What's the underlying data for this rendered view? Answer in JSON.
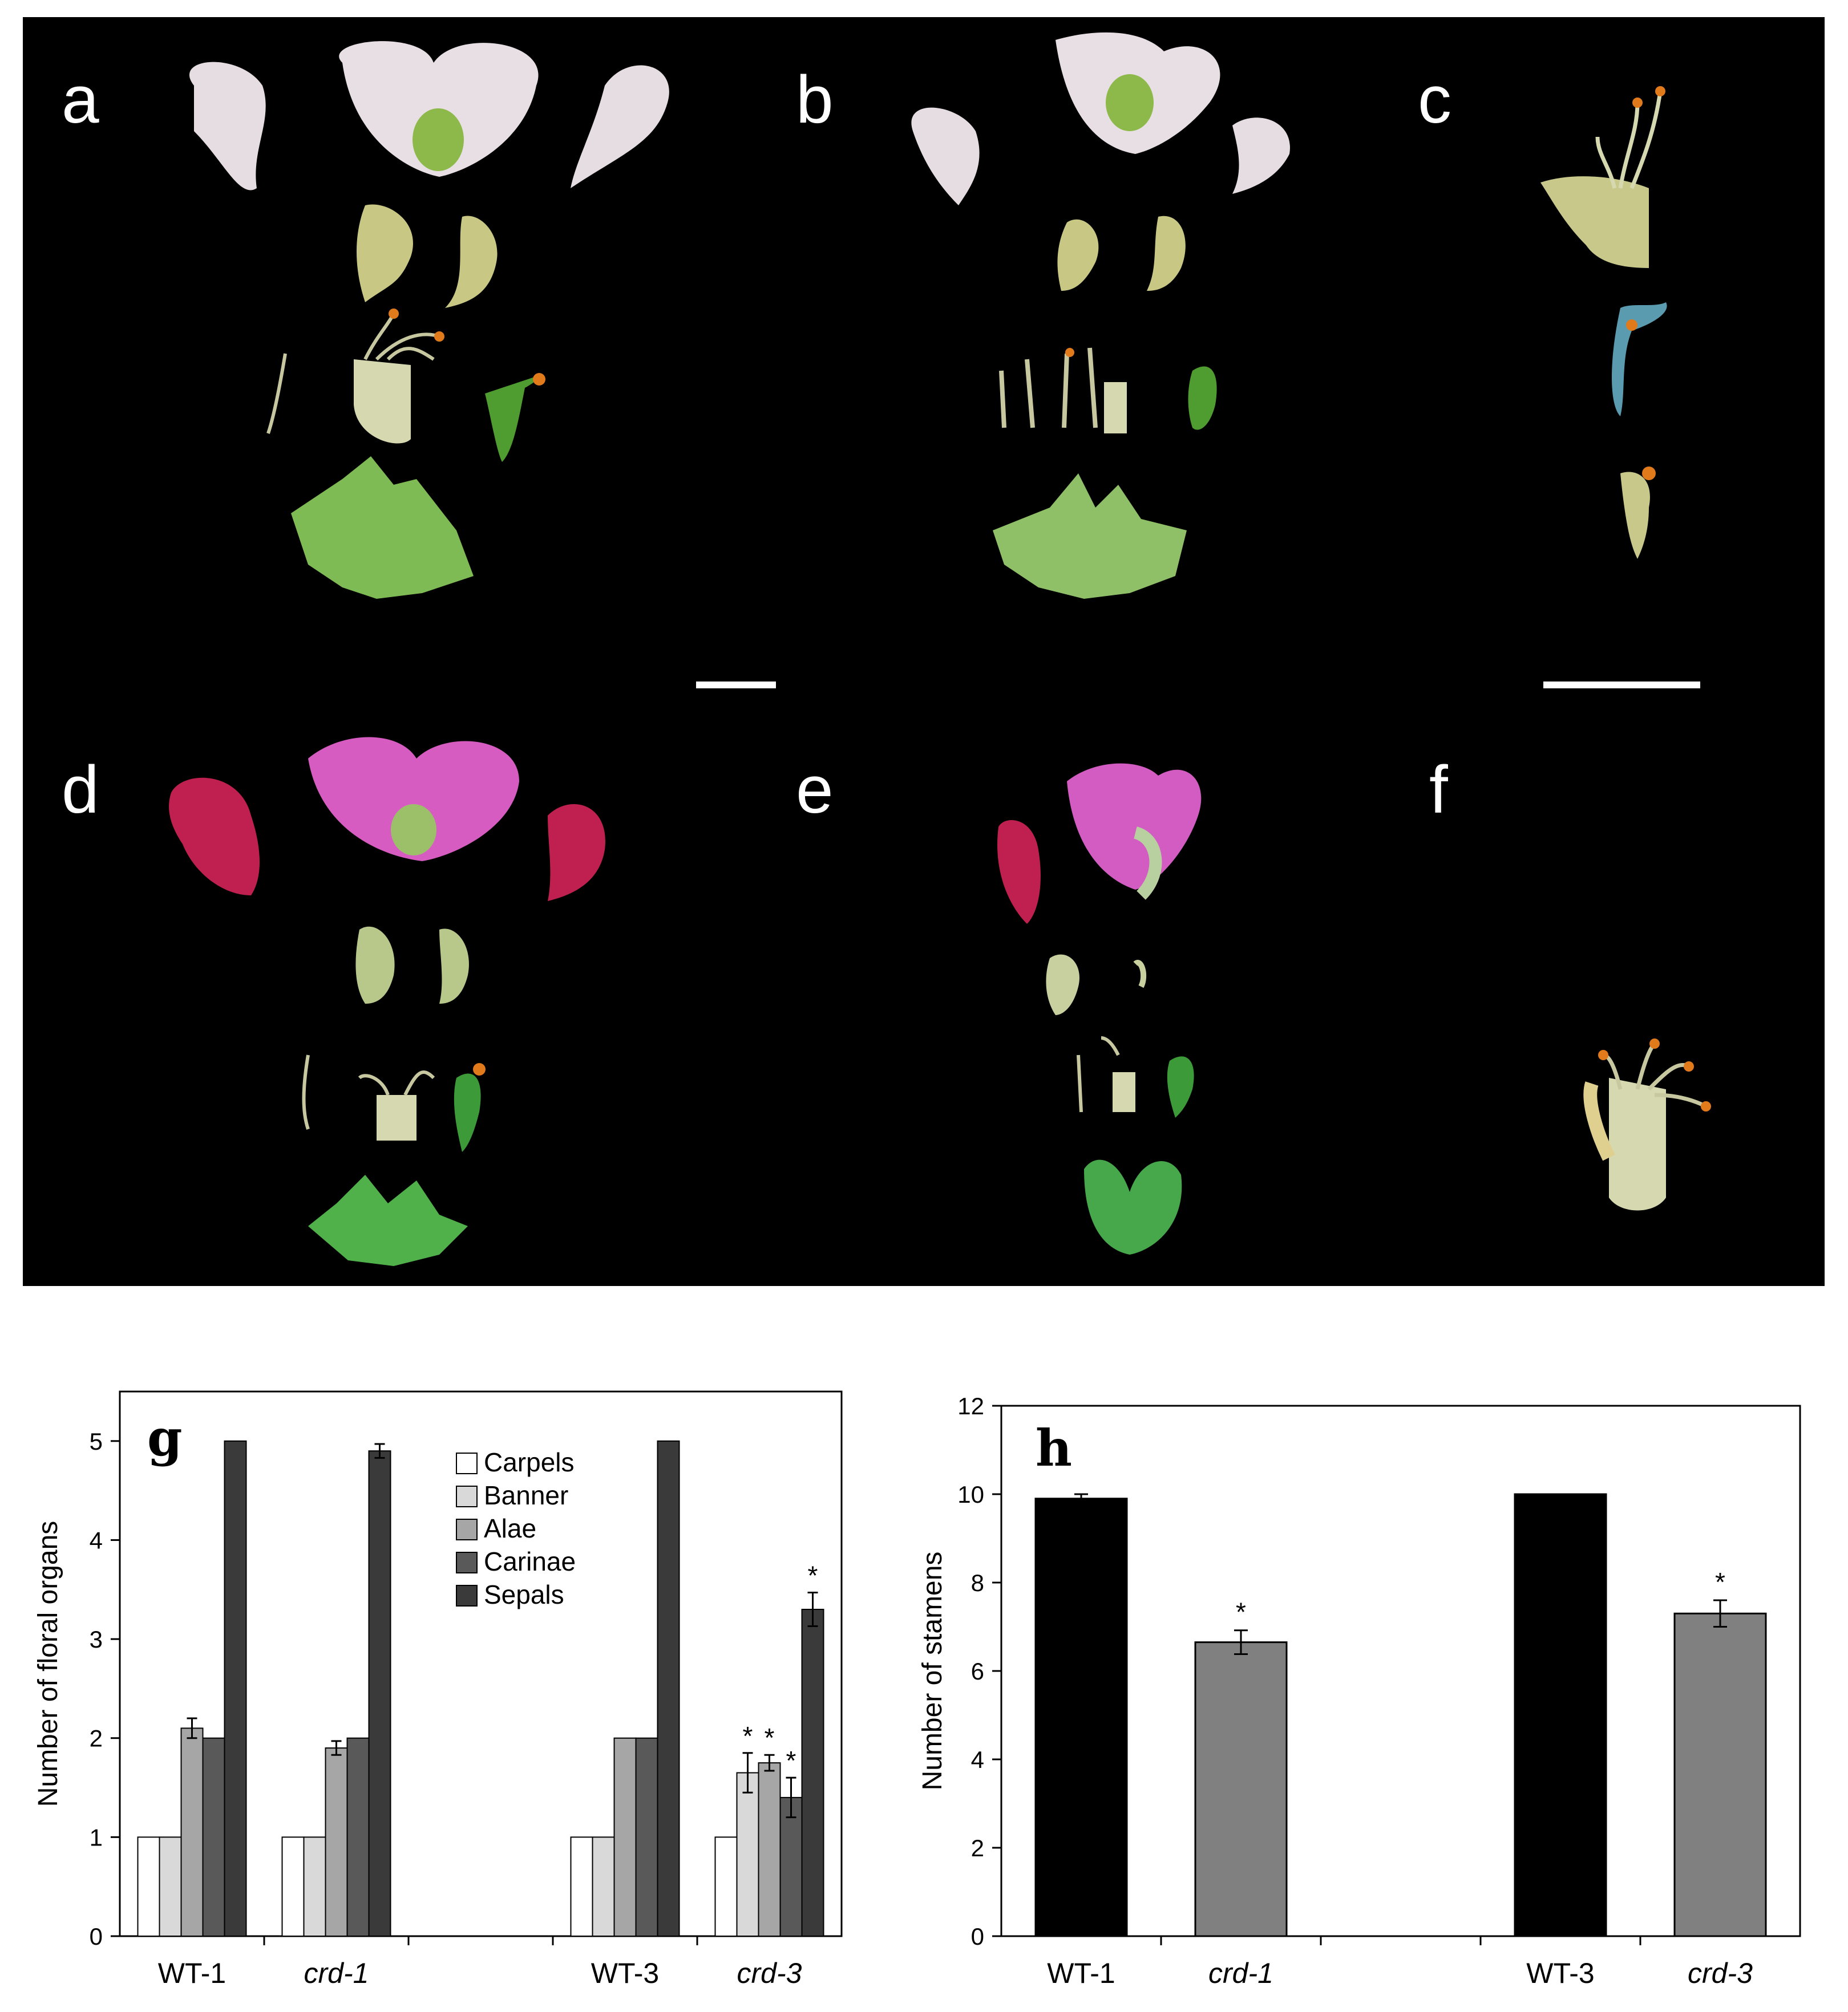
{
  "photo": {
    "panel_labels": [
      "a",
      "b",
      "c",
      "d",
      "e",
      "f"
    ],
    "colors": {
      "background": "#000000",
      "white_petal": "#e8e0e4",
      "pink_petal": "#d04fb8",
      "magenta_wing": "#c0204f",
      "green": "#5aa038",
      "pale_green": "#c8d08a",
      "orange": "#e07a1a"
    }
  },
  "chart_g": {
    "panel_letter": "g",
    "ylabel": "Number of floral organs",
    "legend_entries": [
      "Carpels",
      "Banner",
      "Alae",
      "Carinae",
      "Sepals"
    ],
    "y_ticks": [
      "0",
      "1",
      "2",
      "3",
      "4",
      "5"
    ],
    "significance_mark": "*"
  },
  "chart_h": {
    "panel_letter": "h",
    "ylabel": "Number of stamens",
    "y_ticks": [
      "0",
      "2",
      "4",
      "6",
      "8",
      "10",
      "12"
    ],
    "significance_mark": "*"
  },
  "chart_data": [
    {
      "type": "bar",
      "ylabel": "Number of floral organs",
      "ylim": [
        0,
        5.5
      ],
      "categories": [
        "WT-1",
        "crd-1",
        "WT-3",
        "crd-3"
      ],
      "category_italic": [
        false,
        true,
        false,
        true
      ],
      "legend": "top-right",
      "series": [
        {
          "name": "Carpels",
          "color": "#ffffff",
          "values": [
            1,
            1,
            1,
            1
          ],
          "errors": [
            0,
            0,
            0,
            0
          ],
          "significant": [
            false,
            false,
            false,
            false
          ]
        },
        {
          "name": "Banner",
          "color": "#d9d9d9",
          "values": [
            1,
            1,
            1,
            1.65
          ],
          "errors": [
            0,
            0,
            0,
            0.2
          ],
          "significant": [
            false,
            false,
            false,
            true
          ]
        },
        {
          "name": "Alae",
          "color": "#a6a6a6",
          "values": [
            2.1,
            1.9,
            2,
            1.75
          ],
          "errors": [
            0.1,
            0.07,
            0,
            0.08
          ],
          "significant": [
            false,
            false,
            false,
            true
          ]
        },
        {
          "name": "Carinae",
          "color": "#595959",
          "values": [
            2,
            2,
            2,
            1.4
          ],
          "errors": [
            0,
            0,
            0,
            0.2
          ],
          "significant": [
            false,
            false,
            false,
            true
          ]
        },
        {
          "name": "Sepals",
          "color": "#3a3a3a",
          "values": [
            5,
            4.9,
            5,
            3.3
          ],
          "errors": [
            0,
            0.07,
            0,
            0.17
          ],
          "significant": [
            false,
            false,
            false,
            true
          ]
        }
      ]
    },
    {
      "type": "bar",
      "ylabel": "Number of stamens",
      "ylim": [
        0,
        12
      ],
      "categories": [
        "WT-1",
        "crd-1",
        "WT-3",
        "crd-3"
      ],
      "category_italic": [
        false,
        true,
        false,
        true
      ],
      "series": [
        {
          "values": [
            9.9,
            6.65,
            10,
            7.3
          ],
          "errors": [
            0.1,
            0.27,
            0,
            0.3
          ],
          "colors": [
            "#000000",
            "#808080",
            "#000000",
            "#808080"
          ],
          "significant": [
            false,
            true,
            false,
            true
          ]
        }
      ]
    }
  ]
}
